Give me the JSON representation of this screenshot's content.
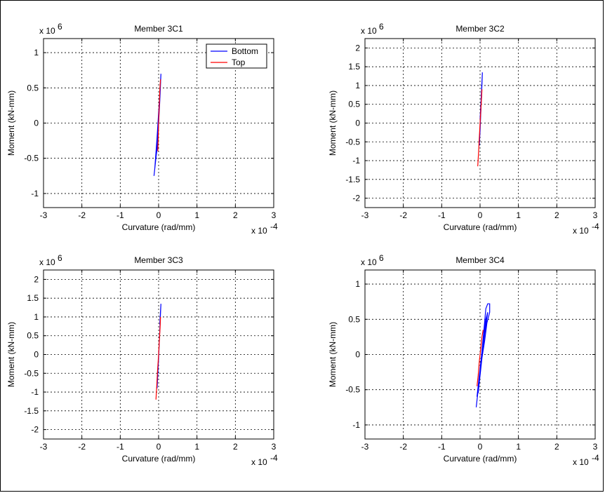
{
  "chart_data": [
    {
      "type": "line",
      "title": "Member 3C1",
      "xlabel": "Curvature (rad/mm)",
      "ylabel": "Moment (kN-mm)",
      "x_scale_label": "x 10",
      "x_scale_exp": "-4",
      "y_scale_label": "x 10",
      "y_scale_exp": "6",
      "xlim": [
        -3,
        3
      ],
      "ylim": [
        -1.2,
        1.2
      ],
      "xticks": [
        -3,
        -2,
        -1,
        0,
        1,
        2,
        3
      ],
      "yticks": [
        -1,
        -0.5,
        0,
        0.5,
        1
      ],
      "grid": true,
      "legend_position": "top-right",
      "legend": [
        "Bottom",
        "Top"
      ],
      "series": [
        {
          "name": "Bottom",
          "color": "#0000ff",
          "x": [
            -0.12,
            -0.08,
            -0.05,
            -0.02,
            0.0,
            0.03,
            0.05,
            0.06,
            0.04,
            0.0,
            -0.04,
            -0.08,
            -0.1,
            -0.06,
            -0.02
          ],
          "y": [
            -0.75,
            -0.55,
            -0.4,
            -0.2,
            0.0,
            0.3,
            0.55,
            0.7,
            0.5,
            0.15,
            -0.2,
            -0.5,
            -0.65,
            -0.45,
            -0.3
          ]
        },
        {
          "name": "Top",
          "color": "#ff0000",
          "x": [
            -0.02,
            -0.01,
            0.0,
            0.01,
            0.02,
            0.03,
            0.04,
            0.05
          ],
          "y": [
            -0.4,
            -0.2,
            0.0,
            0.15,
            0.3,
            0.45,
            0.55,
            0.62
          ]
        }
      ]
    },
    {
      "type": "line",
      "title": "Member 3C2",
      "xlabel": "Curvature (rad/mm)",
      "ylabel": "Moment (kN-mm)",
      "x_scale_label": "x 10",
      "x_scale_exp": "-4",
      "y_scale_label": "x 10",
      "y_scale_exp": "6",
      "xlim": [
        -3,
        3
      ],
      "ylim": [
        -2.25,
        2.25
      ],
      "xticks": [
        -3,
        -2,
        -1,
        0,
        1,
        2,
        3
      ],
      "yticks": [
        -2,
        -1.5,
        -1,
        -0.5,
        0,
        0.5,
        1,
        1.5,
        2
      ],
      "grid": true,
      "series": [
        {
          "name": "",
          "color": "#0000ff",
          "x": [
            -0.02,
            0.0,
            0.02,
            0.04,
            0.06,
            0.04,
            0.0
          ],
          "y": [
            -0.6,
            -0.2,
            0.3,
            0.8,
            1.35,
            0.9,
            0.1
          ]
        },
        {
          "name": "",
          "color": "#ff0000",
          "x": [
            -0.06,
            -0.04,
            -0.02,
            0.0,
            0.02,
            0.04,
            0.05
          ],
          "y": [
            -1.15,
            -0.8,
            -0.4,
            0.0,
            0.35,
            0.7,
            0.9
          ]
        }
      ]
    },
    {
      "type": "line",
      "title": "Member 3C3",
      "xlabel": "Curvature (rad/mm)",
      "ylabel": "Moment (kN-mm)",
      "x_scale_label": "x 10",
      "x_scale_exp": "-4",
      "y_scale_label": "x 10",
      "y_scale_exp": "6",
      "xlim": [
        -3,
        3
      ],
      "ylim": [
        -2.25,
        2.25
      ],
      "xticks": [
        -3,
        -2,
        -1,
        0,
        1,
        2,
        3
      ],
      "yticks": [
        -2,
        -1.5,
        -1,
        -0.5,
        0,
        0.5,
        1,
        1.5,
        2
      ],
      "grid": true,
      "series": [
        {
          "name": "",
          "color": "#0000ff",
          "x": [
            -0.04,
            -0.02,
            0.0,
            0.02,
            0.04,
            0.06,
            0.03
          ],
          "y": [
            -0.9,
            -0.5,
            -0.1,
            0.4,
            0.9,
            1.35,
            0.8
          ]
        },
        {
          "name": "",
          "color": "#ff0000",
          "x": [
            -0.07,
            -0.05,
            -0.03,
            0.0,
            0.02,
            0.04,
            0.05
          ],
          "y": [
            -1.2,
            -0.85,
            -0.45,
            0.0,
            0.4,
            0.75,
            1.0
          ]
        }
      ]
    },
    {
      "type": "line",
      "title": "Member 3C4",
      "xlabel": "Curvature (rad/mm)",
      "ylabel": "Moment (kN-mm)",
      "x_scale_label": "x 10",
      "x_scale_exp": "-4",
      "y_scale_label": "x 10",
      "y_scale_exp": "6",
      "xlim": [
        -3,
        3
      ],
      "ylim": [
        -1.2,
        1.2
      ],
      "xticks": [
        -3,
        -2,
        -1,
        0,
        1,
        2,
        3
      ],
      "yticks": [
        -1,
        -0.5,
        0,
        0.5,
        1
      ],
      "grid": true,
      "series": [
        {
          "name": "",
          "color": "#0000ff",
          "x": [
            -0.1,
            -0.05,
            0.0,
            0.05,
            0.1,
            0.15,
            0.2,
            0.25,
            0.25,
            0.18,
            0.12,
            0.05,
            0.0,
            -0.05,
            0.0,
            0.08,
            0.15,
            0.2,
            0.12,
            0.05,
            -0.02,
            -0.08
          ],
          "y": [
            -0.75,
            -0.5,
            -0.25,
            0.05,
            0.35,
            0.65,
            0.72,
            0.72,
            0.6,
            0.45,
            0.2,
            -0.05,
            -0.3,
            -0.55,
            -0.2,
            0.2,
            0.5,
            0.6,
            0.3,
            0.0,
            -0.3,
            -0.6
          ]
        },
        {
          "name": "",
          "color": "#ff0000",
          "x": [
            -0.08,
            -0.05,
            -0.02,
            0.0,
            0.02,
            0.05,
            0.08
          ],
          "y": [
            -0.45,
            -0.3,
            -0.1,
            0.0,
            0.1,
            0.25,
            0.35
          ]
        }
      ]
    }
  ]
}
